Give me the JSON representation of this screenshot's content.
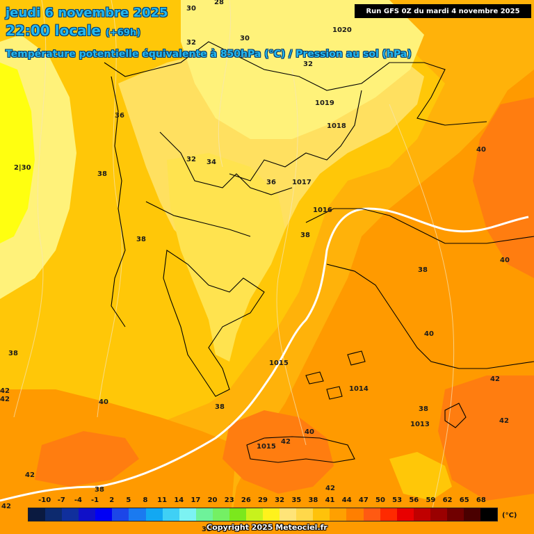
{
  "title": {
    "date": "jeudi 6 novembre 2025",
    "time": "22:00 locale",
    "lead": "(+69h)",
    "parameter": "Température potentielle équivalente à 850hPa (°C) / Pression au sol (hPa)"
  },
  "run": "Run GFS 0Z du mardi 4 novembre 2025",
  "copyright": "Copyright 2025 Meteociel.fr",
  "scale": {
    "unit": "(°C)",
    "ticks": [
      "-10",
      "-7",
      "-4",
      "-1",
      "2",
      "5",
      "8",
      "11",
      "14",
      "17",
      "20",
      "23",
      "26",
      "29",
      "32",
      "35",
      "38",
      "41",
      "44",
      "47",
      "50",
      "53",
      "56",
      "59",
      "62",
      "65",
      "68"
    ],
    "colors": [
      "#0a1a40",
      "#0d2a6e",
      "#102f9c",
      "#1010c8",
      "#0000f5",
      "#1c46e8",
      "#1a7af0",
      "#12a8f2",
      "#3fd0f5",
      "#7cf2f2",
      "#6ef29a",
      "#74f064",
      "#7be81c",
      "#c8f21c",
      "#fff21c",
      "#ffe478",
      "#ffd84a",
      "#ffc20a",
      "#ffa000",
      "#ff7f00",
      "#ff5a12",
      "#ff2a00",
      "#e80000",
      "#c00000",
      "#9a0000",
      "#700000",
      "#4a0000",
      "#000000"
    ]
  },
  "field_colors": {
    "bright_yellow": "#ffff10",
    "pale_yellow": "#fff27a",
    "light_gold": "#ffe060",
    "gold": "#ffc708",
    "amber": "#ffad0a",
    "orange": "#ff9a00",
    "deep_orange": "#ff7d10",
    "red_orange": "#f86a14"
  },
  "labels": {
    "pressure": [
      "1020",
      "1019",
      "1018",
      "1017",
      "1016",
      "1015",
      "1014",
      "1013",
      "1015"
    ],
    "theta": [
      "30",
      "28",
      "32",
      "30",
      "32",
      "36",
      "34",
      "32",
      "38",
      "36",
      "38",
      "38",
      "38",
      "38",
      "40",
      "40",
      "40",
      "38",
      "40",
      "42",
      "42",
      "42",
      "40",
      "42",
      "42",
      "42",
      "42",
      "38",
      "38",
      "38",
      "2|30",
      "42",
      "42"
    ]
  }
}
